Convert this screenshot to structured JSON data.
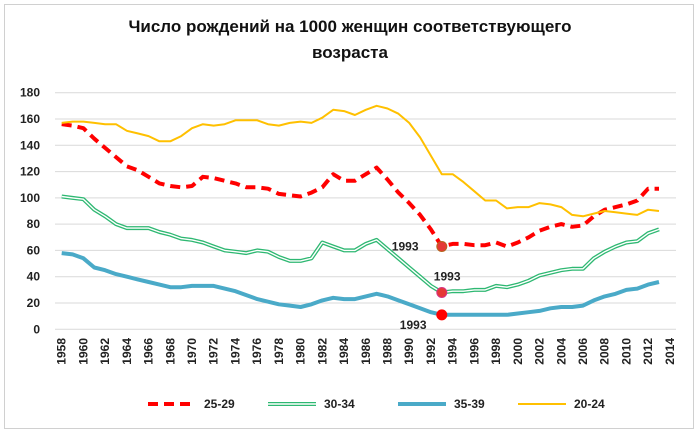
{
  "chart_data": {
    "type": "line",
    "title_lines": [
      "Число рождений на 1000 женщин соответствующего",
      "возраста"
    ],
    "xlabel": "",
    "ylabel": "",
    "ylim": [
      0,
      180
    ],
    "yticks": [
      0,
      20,
      40,
      60,
      80,
      100,
      120,
      140,
      160,
      180
    ],
    "xlim": [
      1958,
      2014
    ],
    "xticks": [
      1958,
      1960,
      1962,
      1964,
      1966,
      1968,
      1970,
      1972,
      1974,
      1976,
      1978,
      1980,
      1982,
      1984,
      1986,
      1988,
      1990,
      1992,
      1994,
      1996,
      1998,
      2000,
      2002,
      2004,
      2006,
      2008,
      2010,
      2012,
      2014
    ],
    "grid": true,
    "legend_position": "bottom",
    "x": [
      1958,
      1959,
      1960,
      1961,
      1962,
      1963,
      1964,
      1965,
      1966,
      1967,
      1968,
      1969,
      1970,
      1971,
      1972,
      1973,
      1974,
      1975,
      1976,
      1977,
      1978,
      1979,
      1980,
      1981,
      1982,
      1983,
      1984,
      1985,
      1986,
      1987,
      1988,
      1989,
      1990,
      1991,
      1992,
      1993,
      1994,
      1995,
      1996,
      1997,
      1998,
      1999,
      2000,
      2001,
      2002,
      2003,
      2004,
      2005,
      2006,
      2007,
      2008,
      2009,
      2010,
      2011,
      2012,
      2013
    ],
    "series": [
      {
        "name": "25-29",
        "color": "#ff0000",
        "style": "dashed",
        "values": [
          156,
          155,
          153,
          145,
          138,
          131,
          124,
          121,
          116,
          111,
          109,
          108,
          109,
          116,
          115,
          113,
          111,
          108,
          108,
          107,
          103,
          102,
          101,
          104,
          108,
          118,
          113,
          113,
          118,
          123,
          114,
          104,
          96,
          87,
          76,
          63,
          65,
          65,
          64,
          64,
          66,
          63,
          66,
          70,
          75,
          78,
          80,
          78,
          79,
          86,
          91,
          93,
          95,
          98,
          107,
          107
        ]
      },
      {
        "name": "30-34",
        "color": "#2eb872",
        "style": "double",
        "values": [
          101,
          100,
          99,
          91,
          86,
          80,
          77,
          77,
          77,
          74,
          72,
          69,
          68,
          66,
          63,
          60,
          59,
          58,
          60,
          59,
          55,
          52,
          52,
          54,
          66,
          63,
          60,
          60,
          65,
          68,
          61,
          54,
          47,
          40,
          33,
          28,
          29,
          29,
          30,
          30,
          33,
          32,
          34,
          37,
          41,
          43,
          45,
          46,
          46,
          54,
          59,
          63,
          66,
          67,
          73,
          76
        ]
      },
      {
        "name": "35-39",
        "color": "#4aaac8",
        "style": "thick",
        "values": [
          58,
          57,
          54,
          47,
          45,
          42,
          40,
          38,
          36,
          34,
          32,
          32,
          33,
          33,
          33,
          31,
          29,
          26,
          23,
          21,
          19,
          18,
          17,
          19,
          22,
          24,
          23,
          23,
          25,
          27,
          25,
          22,
          19,
          16,
          13,
          11,
          11,
          11,
          11,
          11,
          11,
          11,
          12,
          13,
          14,
          16,
          17,
          17,
          18,
          22,
          25,
          27,
          30,
          31,
          34,
          36
        ]
      },
      {
        "name": "20-24",
        "color": "#ffc000",
        "style": "solid",
        "values": [
          157,
          158,
          158,
          157,
          156,
          156,
          151,
          149,
          147,
          143,
          143,
          147,
          153,
          156,
          155,
          156,
          159,
          159,
          159,
          156,
          155,
          157,
          158,
          157,
          161,
          167,
          166,
          163,
          167,
          170,
          168,
          164,
          157,
          146,
          132,
          118,
          118,
          112,
          105,
          98,
          98,
          92,
          93,
          93,
          96,
          95,
          93,
          87,
          86,
          88,
          90,
          89,
          88,
          87,
          91,
          90
        ]
      }
    ],
    "annotations": [
      {
        "text": "1993",
        "series": "25-29",
        "x": 1993,
        "y": 63
      },
      {
        "text": "1993",
        "series": "30-34",
        "x": 1993,
        "y": 28
      },
      {
        "text": "1993",
        "series": "35-39",
        "x": 1993,
        "y": 11
      }
    ]
  }
}
